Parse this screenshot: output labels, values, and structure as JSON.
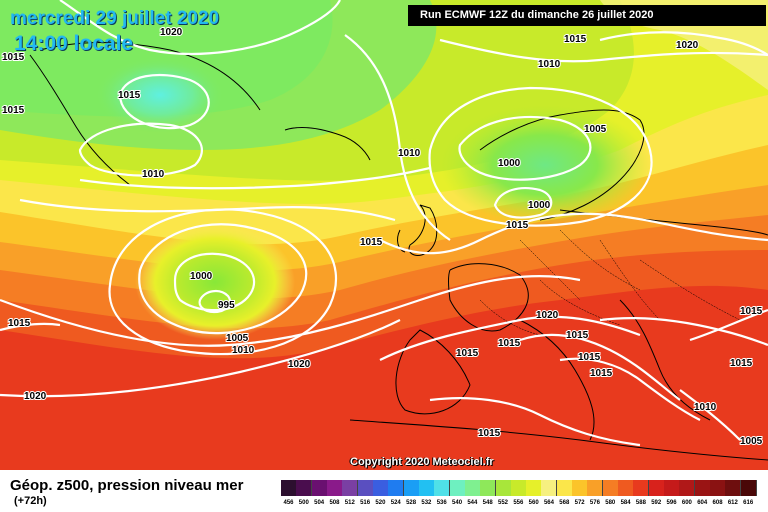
{
  "header": {
    "date": "mercredi 29 juillet 2020",
    "time": "14:00 locale",
    "run": "Run ECMWF 12Z du dimanche 26 juillet 2020"
  },
  "footer": {
    "field": "Géop. z500, pression niveau mer",
    "lead": "(+72h)",
    "copyright": "Copyright 2020 Meteociel.fr"
  },
  "scale": {
    "levels": [
      "456",
      "500",
      "504",
      "508",
      "512",
      "516",
      "520",
      "524",
      "528",
      "532",
      "536",
      "540",
      "544",
      "548",
      "552",
      "556",
      "560",
      "564",
      "568",
      "572",
      "576",
      "580",
      "584",
      "588",
      "592",
      "596",
      "600",
      "604",
      "608",
      "612",
      "616"
    ],
    "colors": [
      "#2c0f2f",
      "#4a0d4e",
      "#6a1070",
      "#8a1a8a",
      "#7a3fa3",
      "#5a4fc0",
      "#3a5ee0",
      "#1f7cf0",
      "#1a9ef5",
      "#22c0f2",
      "#4fe0e8",
      "#6ef0c0",
      "#7ff090",
      "#8ee85a",
      "#a8e63a",
      "#c8ea2a",
      "#e6f02a",
      "#f6f080",
      "#fbe64a",
      "#fbc42a",
      "#f9a028",
      "#f57d24",
      "#ef5a20",
      "#e83a1e",
      "#d8221c",
      "#c51a1a",
      "#b01818",
      "#9a1414",
      "#8a1212",
      "#6e0e0e",
      "#4a0808"
    ]
  },
  "isobars": [
    {
      "value": "1020"
    },
    {
      "value": "1015"
    },
    {
      "value": "1015"
    },
    {
      "value": "1015"
    },
    {
      "value": "1010"
    },
    {
      "value": "1010"
    },
    {
      "value": "1010"
    },
    {
      "value": "1000"
    },
    {
      "value": "1000"
    },
    {
      "value": "1005"
    },
    {
      "value": "1015"
    },
    {
      "value": "1020"
    },
    {
      "value": "1015"
    },
    {
      "value": "1015"
    },
    {
      "value": "1000"
    },
    {
      "value": "995"
    },
    {
      "value": "1005"
    },
    {
      "value": "1010"
    },
    {
      "value": "1020"
    },
    {
      "value": "1015"
    },
    {
      "value": "1020"
    },
    {
      "value": "1020"
    },
    {
      "value": "1015"
    },
    {
      "value": "1015"
    },
    {
      "value": "1015"
    },
    {
      "value": "1015"
    },
    {
      "value": "1015"
    },
    {
      "value": "1015"
    },
    {
      "value": "1015"
    },
    {
      "value": "1010"
    },
    {
      "value": "1005"
    },
    {
      "value": "1015"
    },
    {
      "value": "1010"
    }
  ]
}
